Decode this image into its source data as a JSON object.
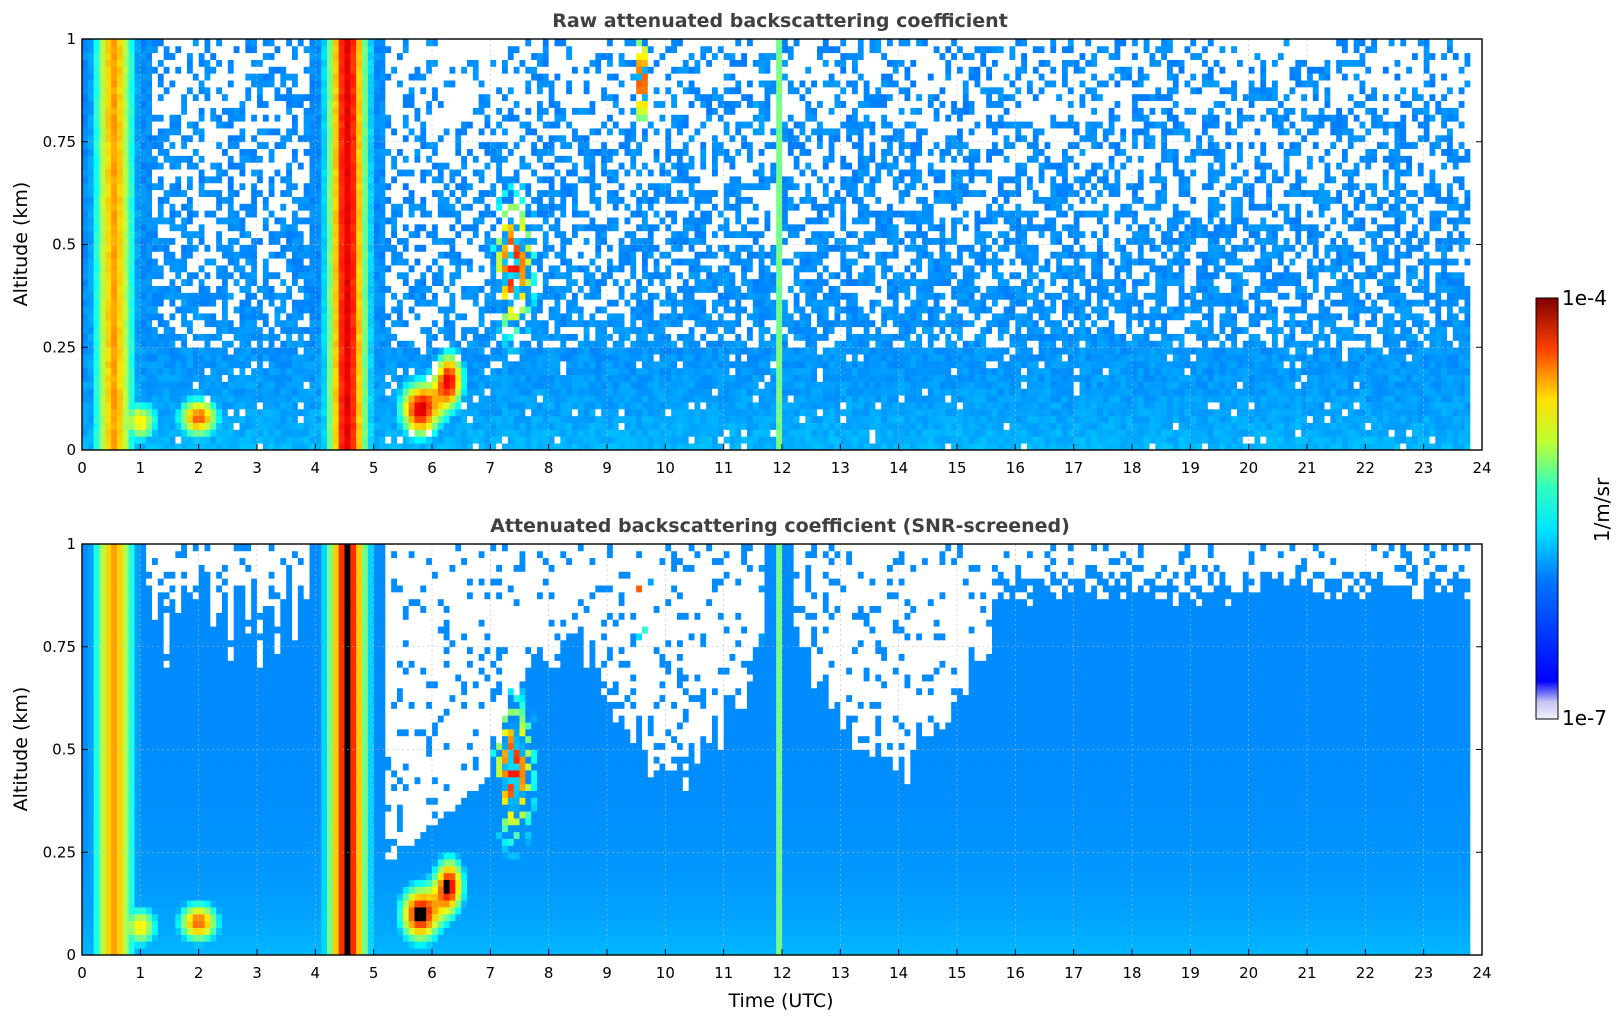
{
  "chart_data": [
    {
      "type": "heatmap",
      "title": "Raw attenuated backscattering coefficient",
      "xlabel": "",
      "ylabel": "Altitude (km)",
      "xlim": [
        0,
        24
      ],
      "ylim": [
        0,
        1
      ],
      "x_ticks": [
        "0",
        "1",
        "2",
        "3",
        "4",
        "5",
        "6",
        "7",
        "8",
        "9",
        "10",
        "11",
        "12",
        "13",
        "14",
        "15",
        "16",
        "17",
        "18",
        "19",
        "20",
        "21",
        "22",
        "23",
        "24"
      ],
      "y_ticks": [
        "0",
        "0.25",
        "0.5",
        "0.75",
        "1"
      ],
      "grid": true,
      "colorscale": "jet",
      "value_range": [
        "1e-7",
        "1e-4"
      ],
      "features": [
        {
          "kind": "high-backscatter column (precipitation/fog)",
          "x": [
            0.05,
            0.95
          ],
          "y": [
            0,
            1
          ],
          "level": "mid"
        },
        {
          "kind": "high-backscatter column (precipitation/fog)",
          "x": [
            4.0,
            5.1
          ],
          "y": [
            0,
            1
          ],
          "level": "high"
        },
        {
          "kind": "low cloud patches",
          "x": [
            5.3,
            6.8
          ],
          "y": [
            0.05,
            0.22
          ],
          "level": "very high"
        },
        {
          "kind": "rising cloud filaments",
          "x": [
            7.0,
            8.0
          ],
          "y": [
            0.3,
            0.7
          ],
          "level": "very high"
        },
        {
          "kind": "narrow vertical streak",
          "x": [
            11.8,
            12.0
          ],
          "y": [
            0,
            1
          ],
          "level": "mid"
        },
        {
          "kind": "background noise (unscreened)",
          "x": [
            5,
            23.8
          ],
          "y": [
            0.25,
            1
          ],
          "level": "low"
        }
      ]
    },
    {
      "type": "heatmap",
      "title": "Attenuated backscattering coefficient (SNR-screened)",
      "xlabel": "Time (UTC)",
      "ylabel": "Altitude (km)",
      "xlim": [
        0,
        24
      ],
      "ylim": [
        0,
        1
      ],
      "x_ticks": [
        "0",
        "1",
        "2",
        "3",
        "4",
        "5",
        "6",
        "7",
        "8",
        "9",
        "10",
        "11",
        "12",
        "13",
        "14",
        "15",
        "16",
        "17",
        "18",
        "19",
        "20",
        "21",
        "22",
        "23",
        "24"
      ],
      "y_ticks": [
        "0",
        "0.25",
        "0.5",
        "0.75",
        "1"
      ],
      "grid": true,
      "colorscale": "jet",
      "value_range": [
        "1e-7",
        "1e-4"
      ],
      "features": [
        {
          "kind": "high-backscatter column",
          "x": [
            0.05,
            0.95
          ],
          "y": [
            0,
            1
          ],
          "level": "mid"
        },
        {
          "kind": "high-backscatter column",
          "x": [
            4.0,
            5.1
          ],
          "y": [
            0,
            1
          ],
          "level": "high"
        },
        {
          "kind": "saturated low cloud (black)",
          "x": [
            5.3,
            6.8
          ],
          "y": [
            0.05,
            0.22
          ],
          "level": "saturated"
        },
        {
          "kind": "screened-out region (white)",
          "x": [
            5.2,
            7.0
          ],
          "y": [
            0.25,
            1
          ],
          "level": "none"
        },
        {
          "kind": "screened-out top (white)",
          "x": [
            7.5,
            15.6
          ],
          "y": [
            0.45,
            1
          ],
          "level": "none"
        },
        {
          "kind": "valid signal region",
          "x": [
            15.8,
            23.8
          ],
          "y": [
            0,
            0.95
          ],
          "level": "low"
        }
      ]
    }
  ],
  "colorbar": {
    "max_label": "1e-4",
    "min_label": "1e-7",
    "unit_label": "1/m/sr"
  }
}
